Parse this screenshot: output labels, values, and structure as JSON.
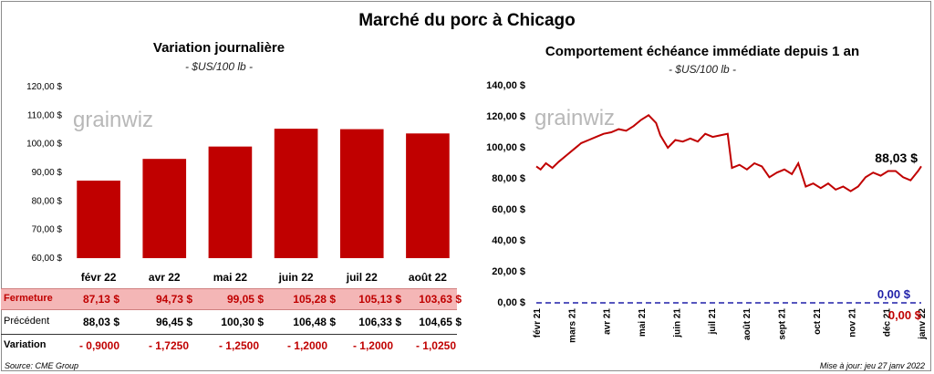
{
  "main_title": "Marché du porc à Chicago",
  "source": "Source: CME Group",
  "updated": "Mise à jour: jeu 27 janv 2022",
  "watermark": "grainwiz",
  "colors": {
    "bar": "#c00000",
    "line": "#c00000",
    "zero_line": "#1f1fa8",
    "fermeture_bg": "#f4b6b6",
    "negative": "#c00000"
  },
  "left_chart": {
    "title": "Variation  journalière",
    "unit": "- $US/100 lb -",
    "y_ticks": [
      "120,00 $",
      "110,00 $",
      "100,00 $",
      "90,00 $",
      "80,00 $",
      "70,00 $",
      "60,00 $"
    ]
  },
  "table": {
    "rows": [
      {
        "label": "Fermeture",
        "values": [
          "87,13  $",
          "94,73  $",
          "99,05  $",
          "105,28  $",
          "105,13  $",
          "103,63  $"
        ]
      },
      {
        "label": "Précédent",
        "values": [
          "88,03  $",
          "96,45  $",
          "100,30  $",
          "106,48  $",
          "106,33  $",
          "104,65  $"
        ]
      },
      {
        "label": "Variation",
        "values": [
          "- 0,9000",
          "- 1,7250",
          "- 1,2500",
          "- 1,2000",
          "- 1,2000",
          "- 1,0250"
        ]
      }
    ]
  },
  "right_chart": {
    "title": "Comportement  échéance immédiate depuis 1 an",
    "unit": "- $US/100 lb -",
    "y_ticks": [
      "140,00 $",
      "120,00 $",
      "100,00 $",
      "80,00 $",
      "60,00 $",
      "40,00 $",
      "20,00 $",
      "0,00 $"
    ],
    "x_ticks": [
      "févr 21",
      "mars 21",
      "avr 21",
      "mai 21",
      "juin 21",
      "juil 21",
      "août 21",
      "sept 21",
      "oct 21",
      "nov 21",
      "déc 21",
      "janv 22"
    ],
    "last_label": "88,03 $",
    "zero_label": "0,00 $",
    "zero_label_red": "0,00 $"
  },
  "chart_data": [
    {
      "type": "bar",
      "title": "Variation  journalière",
      "categories": [
        "févr 22",
        "avr 22",
        "mai 22",
        "juin 22",
        "juil 22",
        "août 22"
      ],
      "values": [
        87.13,
        94.73,
        99.05,
        105.28,
        105.13,
        103.63
      ],
      "ylim": [
        60,
        120
      ],
      "grid": false
    },
    {
      "type": "line",
      "title": "Comportement  échéance immédiate depuis 1 an",
      "ylim": [
        0,
        140
      ],
      "grid": false,
      "series": [
        {
          "x": [
            "2021-02-01",
            "2021-02-05",
            "2021-02-10",
            "2021-02-16",
            "2021-02-22",
            "2021-03-01",
            "2021-03-08",
            "2021-03-15",
            "2021-03-22",
            "2021-03-29",
            "2021-04-05",
            "2021-04-12",
            "2021-04-19",
            "2021-04-26",
            "2021-05-03",
            "2021-05-10",
            "2021-05-17",
            "2021-05-24",
            "2021-05-28",
            "2021-06-04",
            "2021-06-11",
            "2021-06-18",
            "2021-06-25",
            "2021-07-02",
            "2021-07-09",
            "2021-07-16",
            "2021-07-23",
            "2021-07-30",
            "2021-08-03",
            "2021-08-10",
            "2021-08-17",
            "2021-08-24",
            "2021-08-31",
            "2021-09-07",
            "2021-09-14",
            "2021-09-21",
            "2021-09-28",
            "2021-10-04",
            "2021-10-11",
            "2021-10-18",
            "2021-10-25",
            "2021-11-01",
            "2021-11-08",
            "2021-11-15",
            "2021-11-22",
            "2021-11-29",
            "2021-12-06",
            "2021-12-13",
            "2021-12-20",
            "2021-12-27",
            "2022-01-03",
            "2022-01-10",
            "2022-01-17",
            "2022-01-24",
            "2022-01-27"
          ],
          "values": [
            88,
            86,
            90,
            87,
            91,
            95,
            99,
            103,
            105,
            107,
            109,
            110,
            112,
            111,
            114,
            118,
            121,
            116,
            108,
            100,
            105,
            104,
            106,
            104,
            109,
            107,
            108,
            109,
            87,
            89,
            86,
            90,
            88,
            81,
            84,
            86,
            83,
            90,
            75,
            77,
            74,
            77,
            73,
            75,
            72,
            75,
            81,
            84,
            82,
            85,
            85,
            81,
            79,
            85,
            88.03
          ]
        },
        {
          "name": "0,00 $",
          "x": [
            "2021-02-01",
            "2022-01-27"
          ],
          "values": [
            0,
            0
          ]
        }
      ]
    }
  ]
}
